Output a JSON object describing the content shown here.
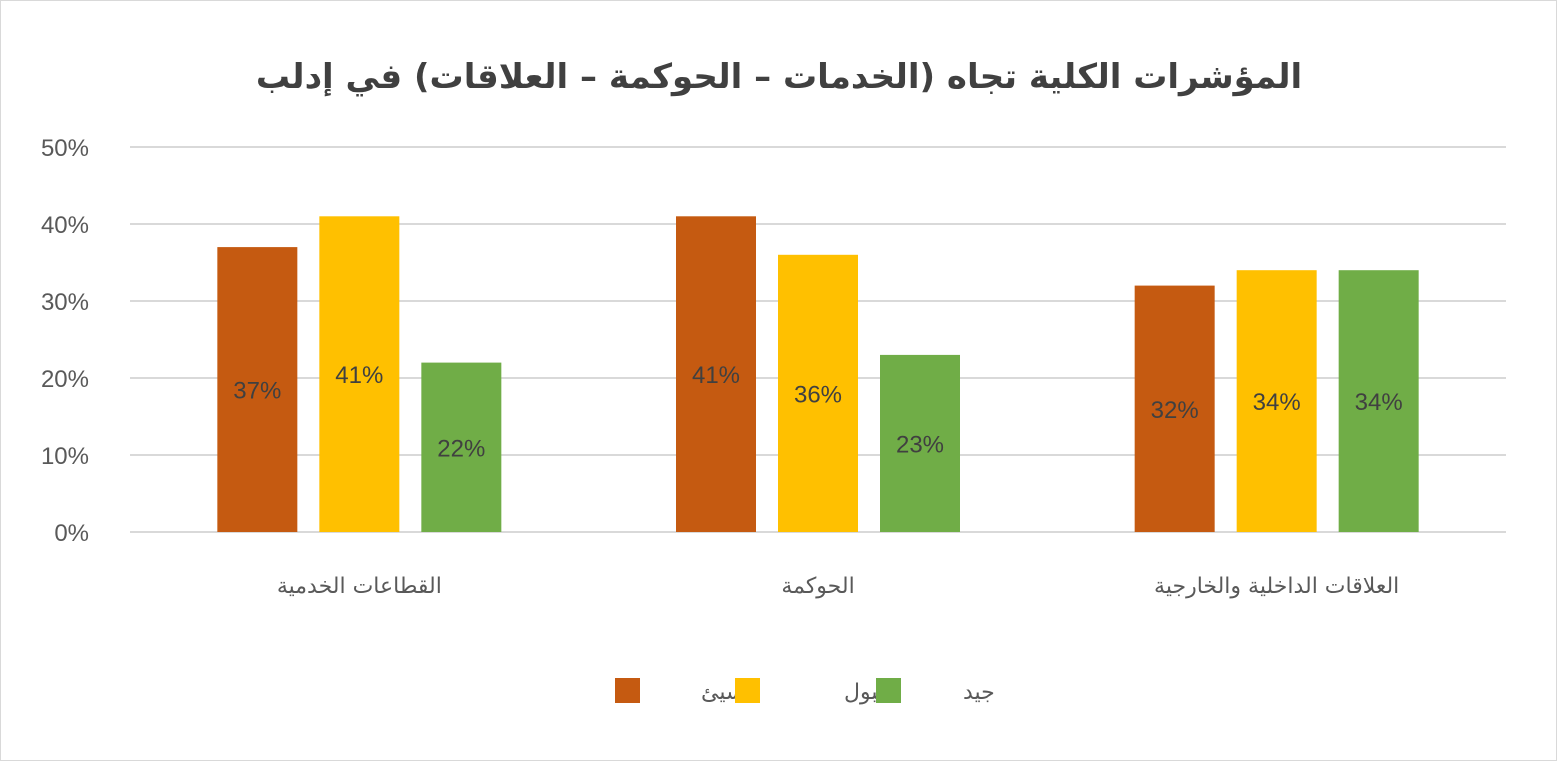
{
  "chart_data": {
    "type": "bar",
    "title": "المؤشرات الكلية تجاه (الخدمات – الحوكمة – العلاقات) في إدلب",
    "categories": [
      "العلاقات الداخلية والخارجية",
      "الحوكمة",
      "القطاعات الخدمية"
    ],
    "series": [
      {
        "name": "سيئ",
        "color": "#C55A11",
        "values": [
          32,
          41,
          37
        ]
      },
      {
        "name": "مقبول",
        "color": "#FFC000",
        "values": [
          34,
          36,
          41
        ]
      },
      {
        "name": "جيد",
        "color": "#70AD47",
        "values": [
          34,
          23,
          22
        ]
      }
    ],
    "value_unit": "%",
    "ylim": [
      0,
      50
    ],
    "yticks": [
      "0%",
      "10%",
      "20%",
      "30%",
      "40%",
      "50%"
    ],
    "grid": true,
    "legend_position": "bottom",
    "gridline_color": "#d9d9d9"
  }
}
